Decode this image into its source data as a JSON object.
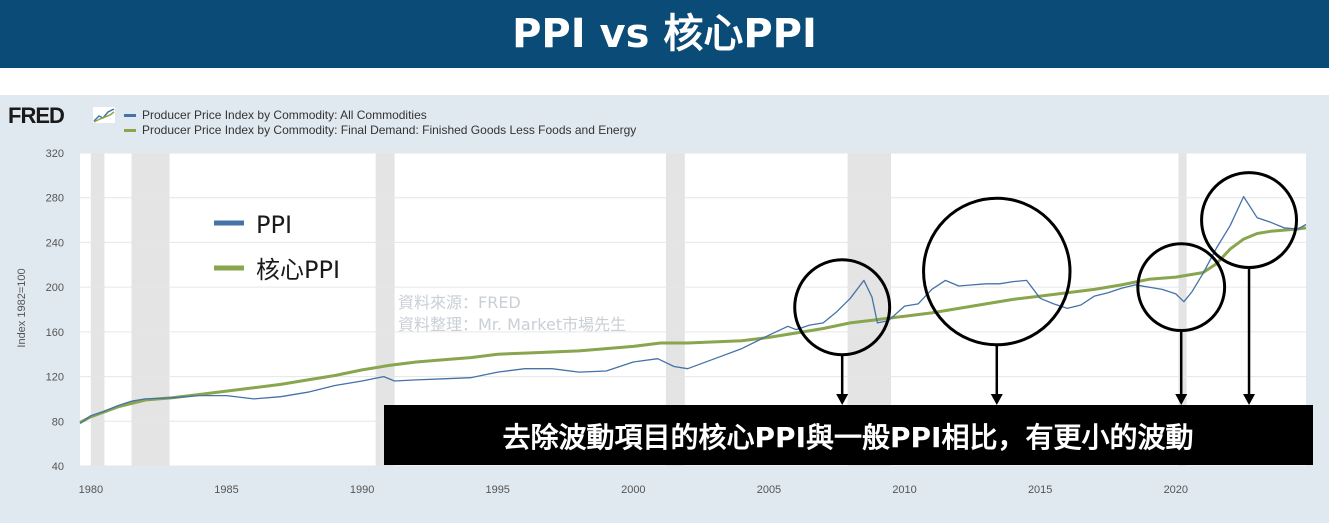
{
  "banner": {
    "title": "PPI vs 核心PPI"
  },
  "fred": {
    "logo": "FRED",
    "legend": [
      {
        "label": "Producer Price Index by Commodity: All Commodities",
        "color": "#4572a7"
      },
      {
        "label": "Producer Price Index by Commodity: Final Demand: Finished Goods Less Foods and Energy",
        "color": "#89a54e"
      }
    ]
  },
  "overlay": {
    "legend": [
      {
        "label": "PPI",
        "color": "#4572a7"
      },
      {
        "label": "核心PPI",
        "color": "#89a54e"
      }
    ],
    "watermark": [
      "資料來源：FRED",
      "資料整理：Mr. Market市場先生"
    ],
    "caption": "去除波動項目的核心PPI與一般PPI相比，有更小的波動"
  },
  "chart_data": {
    "type": "line",
    "ylabel": "Index 1982=100",
    "ylim": [
      40,
      320
    ],
    "yticks": [
      40,
      80,
      120,
      160,
      200,
      240,
      280,
      320
    ],
    "xlim": [
      1979.6,
      2024.8
    ],
    "xticks": [
      1980,
      1985,
      1990,
      1995,
      2000,
      2005,
      2010,
      2015,
      2020
    ],
    "grid": true,
    "recessions": [
      [
        1980.0,
        1980.5
      ],
      [
        1981.5,
        1982.9
      ],
      [
        1990.5,
        1991.2
      ],
      [
        2001.2,
        2001.9
      ],
      [
        2007.9,
        2009.5
      ],
      [
        2020.1,
        2020.4
      ]
    ],
    "series": [
      {
        "name": "Producer Price Index by Commodity: All Commodities",
        "color": "#4572a7",
        "x": [
          1979.6,
          1980,
          1980.5,
          1981,
          1981.5,
          1982,
          1983,
          1984,
          1985,
          1986,
          1987,
          1988,
          1989,
          1990,
          1990.8,
          1991.2,
          1992,
          1993,
          1994,
          1995,
          1996,
          1997,
          1998,
          1999,
          2000,
          2000.9,
          2001.5,
          2002,
          2003,
          2004,
          2005,
          2005.7,
          2006,
          2006.5,
          2007,
          2007.5,
          2008,
          2008.5,
          2008.8,
          2009,
          2009.4,
          2010,
          2010.5,
          2011,
          2011.5,
          2012,
          2012.5,
          2013,
          2013.5,
          2014,
          2014.5,
          2015,
          2015.5,
          2016,
          2016.5,
          2017,
          2017.5,
          2018,
          2018.5,
          2019,
          2019.5,
          2020,
          2020.3,
          2020.6,
          2021,
          2021.5,
          2022,
          2022.5,
          2023,
          2023.5,
          2024,
          2024.5,
          2024.8
        ],
        "values": [
          78,
          85,
          89,
          94,
          98,
          100,
          101,
          103,
          103,
          100,
          102,
          106,
          112,
          116,
          120,
          116,
          117,
          118,
          119,
          124,
          127,
          127,
          124,
          125,
          133,
          136,
          129,
          127,
          136,
          145,
          157,
          165,
          162,
          166,
          168,
          178,
          190,
          206,
          191,
          168,
          170,
          183,
          185,
          198,
          206,
          201,
          202,
          203,
          203,
          205,
          206,
          190,
          185,
          181,
          184,
          192,
          195,
          199,
          202,
          200,
          198,
          194,
          187,
          196,
          212,
          235,
          255,
          281,
          262,
          258,
          253,
          252,
          256
        ]
      },
      {
        "name": "Producer Price Index by Commodity: Final Demand: Finished Goods Less Foods and Energy",
        "color": "#89a54e",
        "x": [
          1979.6,
          1980,
          1981,
          1982,
          1983,
          1984,
          1985,
          1986,
          1987,
          1988,
          1989,
          1990,
          1991,
          1992,
          1993,
          1994,
          1995,
          1996,
          1997,
          1998,
          1999,
          2000,
          2001,
          2002,
          2003,
          2004,
          2005,
          2006,
          2007,
          2008,
          2009,
          2010,
          2011,
          2012,
          2013,
          2014,
          2015,
          2016,
          2017,
          2018,
          2019,
          2020,
          2021,
          2021.5,
          2022,
          2022.5,
          2023,
          2023.5,
          2024,
          2024.5,
          2024.8
        ],
        "values": [
          79,
          84,
          93,
          99,
          101,
          104,
          107,
          110,
          113,
          117,
          121,
          126,
          130,
          133,
          135,
          137,
          140,
          141,
          142,
          143,
          145,
          147,
          150,
          150,
          151,
          152,
          155,
          159,
          163,
          168,
          171,
          174,
          177,
          181,
          185,
          189,
          192,
          195,
          198,
          202,
          207,
          209,
          213,
          221,
          234,
          243,
          248,
          250,
          251,
          252,
          253
        ]
      }
    ],
    "highlight_circles": [
      {
        "x": 2007.7,
        "y": 182,
        "r_years": 1.75
      },
      {
        "x": 2013.4,
        "y": 214,
        "r_years": 2.7
      },
      {
        "x": 2020.2,
        "y": 200,
        "r_years": 1.6
      },
      {
        "x": 2022.7,
        "y": 260,
        "r_years": 1.75
      }
    ]
  }
}
